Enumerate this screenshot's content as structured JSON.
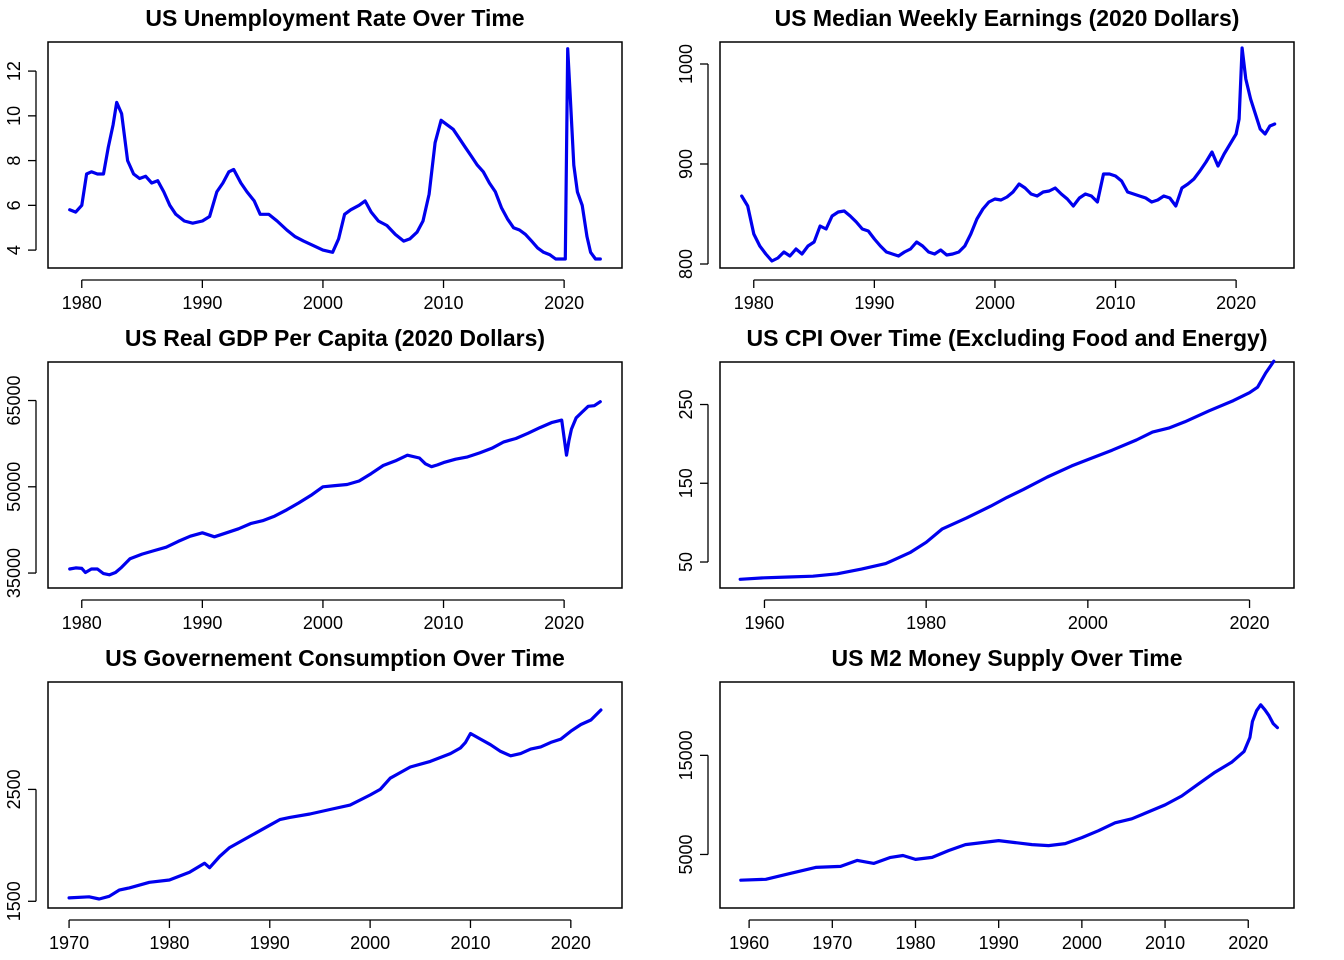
{
  "figure": {
    "line_color": "#0000ee"
  },
  "chart_data": [
    {
      "type": "line",
      "title": "US Unemployment Rate Over Time",
      "xlabel": "",
      "ylabel": "",
      "xlim": [
        1977.2,
        2024.8
      ],
      "ylim": [
        3.2,
        13.3
      ],
      "xticks": [
        1980,
        1990,
        2000,
        2010,
        2020
      ],
      "yticks": [
        4,
        6,
        8,
        10,
        12
      ],
      "grid": false,
      "series": [
        {
          "x": [
            1979.0,
            1979.5,
            1980.0,
            1980.4,
            1980.8,
            1981.3,
            1981.8,
            1982.2,
            1982.6,
            1982.9,
            1983.3,
            1983.8,
            1984.3,
            1984.8,
            1985.3,
            1985.8,
            1986.3,
            1986.8,
            1987.3,
            1987.8,
            1988.5,
            1989.2,
            1990.0,
            1990.6,
            1991.2,
            1991.7,
            1992.2,
            1992.6,
            1993.2,
            1993.7,
            1994.3,
            1994.8,
            1995.5,
            1996.2,
            1997.0,
            1997.7,
            1998.4,
            1999.2,
            2000.0,
            2000.8,
            2001.3,
            2001.8,
            2002.3,
            2003.0,
            2003.5,
            2004.0,
            2004.6,
            2005.3,
            2006.0,
            2006.7,
            2007.2,
            2007.8,
            2008.3,
            2008.8,
            2009.3,
            2009.8,
            2010.3,
            2010.8,
            2011.3,
            2011.8,
            2012.3,
            2012.8,
            2013.3,
            2013.8,
            2014.3,
            2014.8,
            2015.3,
            2015.8,
            2016.3,
            2016.8,
            2017.3,
            2017.8,
            2018.3,
            2018.8,
            2019.3,
            2019.8,
            2020.1,
            2020.3,
            2020.5,
            2020.8,
            2021.1,
            2021.5,
            2021.9,
            2022.2,
            2022.6,
            2023.0
          ],
          "y": [
            5.8,
            5.7,
            6.0,
            7.4,
            7.5,
            7.4,
            7.4,
            8.6,
            9.6,
            10.6,
            10.1,
            8.0,
            7.4,
            7.2,
            7.3,
            7.0,
            7.1,
            6.6,
            6.0,
            5.6,
            5.3,
            5.2,
            5.3,
            5.5,
            6.6,
            7.0,
            7.5,
            7.6,
            7.0,
            6.6,
            6.2,
            5.6,
            5.6,
            5.3,
            4.9,
            4.6,
            4.4,
            4.2,
            4.0,
            3.9,
            4.5,
            5.6,
            5.8,
            6.0,
            6.2,
            5.7,
            5.3,
            5.1,
            4.7,
            4.4,
            4.5,
            4.8,
            5.3,
            6.5,
            8.8,
            9.8,
            9.6,
            9.4,
            9.0,
            8.6,
            8.2,
            7.8,
            7.5,
            7.0,
            6.6,
            5.9,
            5.4,
            5.0,
            4.9,
            4.7,
            4.4,
            4.1,
            3.9,
            3.8,
            3.6,
            3.6,
            3.6,
            13.0,
            11.0,
            7.8,
            6.6,
            6.0,
            4.6,
            3.9,
            3.6,
            3.6
          ]
        }
      ]
    },
    {
      "type": "line",
      "title": "US Median Weekly Earnings (2020 Dollars)",
      "xlabel": "",
      "ylabel": "",
      "xlim": [
        1977.2,
        2024.8
      ],
      "ylim": [
        796,
        1022
      ],
      "xticks": [
        1980,
        1990,
        2000,
        2010,
        2020
      ],
      "yticks": [
        800,
        900,
        1000
      ],
      "grid": false,
      "series": [
        {
          "x": [
            1979.0,
            1979.5,
            1980.0,
            1980.5,
            1981.0,
            1981.5,
            1982.0,
            1982.5,
            1983.0,
            1983.5,
            1984.0,
            1984.5,
            1985.0,
            1985.5,
            1986.0,
            1986.5,
            1987.0,
            1987.5,
            1988.0,
            1988.5,
            1989.0,
            1989.5,
            1990.0,
            1990.5,
            1991.0,
            1991.5,
            1992.0,
            1992.5,
            1993.0,
            1993.5,
            1994.0,
            1994.5,
            1995.0,
            1995.5,
            1996.0,
            1996.5,
            1997.0,
            1997.5,
            1998.0,
            1998.5,
            1999.0,
            1999.5,
            2000.0,
            2000.5,
            2001.0,
            2001.5,
            2002.0,
            2002.5,
            2003.0,
            2003.5,
            2004.0,
            2004.5,
            2005.0,
            2005.5,
            2006.0,
            2006.5,
            2007.0,
            2007.5,
            2008.0,
            2008.5,
            2009.0,
            2009.5,
            2010.0,
            2010.5,
            2011.0,
            2011.5,
            2012.0,
            2012.5,
            2013.0,
            2013.5,
            2014.0,
            2014.5,
            2015.0,
            2015.5,
            2016.0,
            2016.5,
            2017.0,
            2017.5,
            2018.0,
            2018.5,
            2019.0,
            2019.5,
            2020.0,
            2020.25,
            2020.5,
            2020.8,
            2021.2,
            2021.6,
            2022.0,
            2022.4,
            2022.8,
            2023.2
          ],
          "y": [
            868,
            858,
            830,
            818,
            810,
            803,
            806,
            812,
            808,
            815,
            810,
            818,
            822,
            838,
            835,
            848,
            852,
            853,
            848,
            842,
            835,
            833,
            825,
            818,
            812,
            810,
            808,
            812,
            815,
            822,
            818,
            812,
            810,
            814,
            809,
            810,
            812,
            818,
            830,
            845,
            855,
            862,
            865,
            864,
            867,
            872,
            880,
            876,
            870,
            868,
            872,
            873,
            876,
            870,
            865,
            858,
            866,
            870,
            868,
            862,
            890,
            890,
            888,
            883,
            872,
            870,
            868,
            866,
            862,
            864,
            868,
            866,
            858,
            876,
            880,
            885,
            893,
            902,
            912,
            898,
            910,
            920,
            930,
            945,
            1016,
            985,
            965,
            950,
            935,
            930,
            938,
            940
          ]
        }
      ]
    },
    {
      "type": "line",
      "title": "US Real GDP Per Capita (2020 Dollars)",
      "xlabel": "",
      "ylabel": "",
      "xlim": [
        1977.2,
        2024.8
      ],
      "ylim": [
        32400,
        71700
      ],
      "xticks": [
        1980,
        1990,
        2000,
        2010,
        2020
      ],
      "yticks": [
        35000,
        50000,
        65000
      ],
      "ytick_labels": [
        "35000",
        "50000",
        "65000"
      ],
      "grid": false,
      "series": [
        {
          "x": [
            1979.0,
            1979.5,
            1980.0,
            1980.3,
            1980.8,
            1981.3,
            1981.8,
            1982.3,
            1982.8,
            1983.3,
            1984.0,
            1985.0,
            1986.0,
            1987.0,
            1988.0,
            1989.0,
            1990.0,
            1991.0,
            1992.0,
            1993.0,
            1994.0,
            1995.0,
            1996.0,
            1997.0,
            1998.0,
            1999.0,
            2000.0,
            2001.0,
            2002.0,
            2003.0,
            2004.0,
            2005.0,
            2006.0,
            2007.0,
            2008.0,
            2008.5,
            2009.0,
            2009.5,
            2010.0,
            2011.0,
            2012.0,
            2013.0,
            2014.0,
            2015.0,
            2016.0,
            2017.0,
            2018.0,
            2019.0,
            2019.8,
            2020.2,
            2020.4,
            2020.6,
            2021.0,
            2021.5,
            2022.0,
            2022.5,
            2023.0
          ],
          "y": [
            35700,
            35900,
            35800,
            35100,
            35700,
            35700,
            34900,
            34700,
            35100,
            36000,
            37500,
            38300,
            38900,
            39500,
            40500,
            41400,
            42000,
            41300,
            42000,
            42700,
            43600,
            44100,
            44900,
            46000,
            47200,
            48500,
            50000,
            50200,
            50400,
            51000,
            52300,
            53700,
            54500,
            55500,
            55000,
            54000,
            53500,
            53800,
            54200,
            54800,
            55200,
            55900,
            56700,
            57800,
            58400,
            59300,
            60300,
            61200,
            61600,
            55500,
            58000,
            60000,
            62000,
            63000,
            64000,
            64100,
            64800
          ]
        }
      ]
    },
    {
      "type": "line",
      "title": "US CPI Over Time (Excluding Food and Energy)",
      "xlabel": "",
      "ylabel": "",
      "xlim": [
        1954.5,
        2025.5
      ],
      "ylim": [
        17,
        304
      ],
      "xticks": [
        1960,
        1980,
        2000,
        2020
      ],
      "yticks": [
        50,
        150,
        250
      ],
      "grid": false,
      "series": [
        {
          "x": [
            1957.0,
            1960.0,
            1963.0,
            1966.0,
            1969.0,
            1972.0,
            1975.0,
            1978.0,
            1980.0,
            1982.0,
            1985.0,
            1988.0,
            1990.0,
            1992.0,
            1995.0,
            1998.0,
            2000.0,
            2003.0,
            2006.0,
            2008.0,
            2010.0,
            2012.0,
            2015.0,
            2018.0,
            2020.0,
            2021.0,
            2022.0,
            2023.0
          ],
          "y": [
            28,
            30,
            31,
            32,
            35,
            41,
            48,
            62,
            75,
            92,
            106,
            121,
            132,
            142,
            158,
            172,
            180,
            192,
            205,
            215,
            220,
            228,
            242,
            255,
            265,
            272,
            290,
            305
          ]
        }
      ]
    },
    {
      "type": "line",
      "title": "US Governement Consumption Over Time",
      "xlabel": "",
      "ylabel": "",
      "xlim": [
        1967.9,
        2025.1
      ],
      "ylim": [
        1440,
        3460
      ],
      "xticks": [
        1970,
        1980,
        1990,
        2000,
        2010,
        2020
      ],
      "yticks": [
        1500,
        2500
      ],
      "grid": false,
      "series": [
        {
          "x": [
            1970.0,
            1972.0,
            1973.0,
            1974.0,
            1975.0,
            1976.0,
            1978.0,
            1980.0,
            1982.0,
            1983.5,
            1984.0,
            1985.0,
            1986.0,
            1988.0,
            1990.0,
            1991.0,
            1992.0,
            1994.0,
            1996.0,
            1998.0,
            2000.0,
            2001.0,
            2002.0,
            2003.0,
            2004.0,
            2006.0,
            2008.0,
            2009.0,
            2009.5,
            2010.0,
            2011.0,
            2012.0,
            2013.0,
            2014.0,
            2015.0,
            2016.0,
            2017.0,
            2018.0,
            2019.0,
            2020.0,
            2021.0,
            2022.0,
            2023.0
          ],
          "y": [
            1530,
            1540,
            1520,
            1545,
            1600,
            1620,
            1670,
            1690,
            1760,
            1840,
            1800,
            1900,
            1980,
            2080,
            2180,
            2230,
            2250,
            2280,
            2320,
            2360,
            2450,
            2500,
            2600,
            2650,
            2700,
            2750,
            2820,
            2870,
            2920,
            3000,
            2950,
            2900,
            2840,
            2800,
            2820,
            2860,
            2880,
            2920,
            2950,
            3020,
            3080,
            3120,
            3210
          ]
        }
      ]
    },
    {
      "type": "line",
      "title": "US M2 Money Supply Over Time",
      "xlabel": "",
      "ylabel": "",
      "xlim": [
        1956.5,
        2025.5
      ],
      "ylim": [
        -400,
        22400
      ],
      "xticks": [
        1960,
        1970,
        1980,
        1990,
        2000,
        2010,
        2020
      ],
      "yticks": [
        5000,
        15000
      ],
      "grid": false,
      "series": [
        {
          "x": [
            1959.0,
            1962.0,
            1965.0,
            1968.0,
            1971.0,
            1973.0,
            1975.0,
            1977.0,
            1978.5,
            1980.0,
            1982.0,
            1984.0,
            1986.0,
            1988.0,
            1990.0,
            1992.0,
            1994.0,
            1996.0,
            1998.0,
            2000.0,
            2002.0,
            2004.0,
            2006.0,
            2008.0,
            2010.0,
            2012.0,
            2014.0,
            2016.0,
            2018.0,
            2019.5,
            2020.2,
            2020.5,
            2021.0,
            2021.5,
            2022.0,
            2022.5,
            2023.0,
            2023.5
          ],
          "y": [
            2400,
            2500,
            3100,
            3700,
            3800,
            4400,
            4100,
            4700,
            4900,
            4500,
            4700,
            5400,
            6000,
            6200,
            6400,
            6200,
            6000,
            5900,
            6100,
            6700,
            7400,
            8200,
            8600,
            9300,
            10000,
            10900,
            12100,
            13300,
            14300,
            15400,
            16800,
            18400,
            19500,
            20100,
            19600,
            19000,
            18200,
            17800
          ]
        }
      ]
    }
  ]
}
